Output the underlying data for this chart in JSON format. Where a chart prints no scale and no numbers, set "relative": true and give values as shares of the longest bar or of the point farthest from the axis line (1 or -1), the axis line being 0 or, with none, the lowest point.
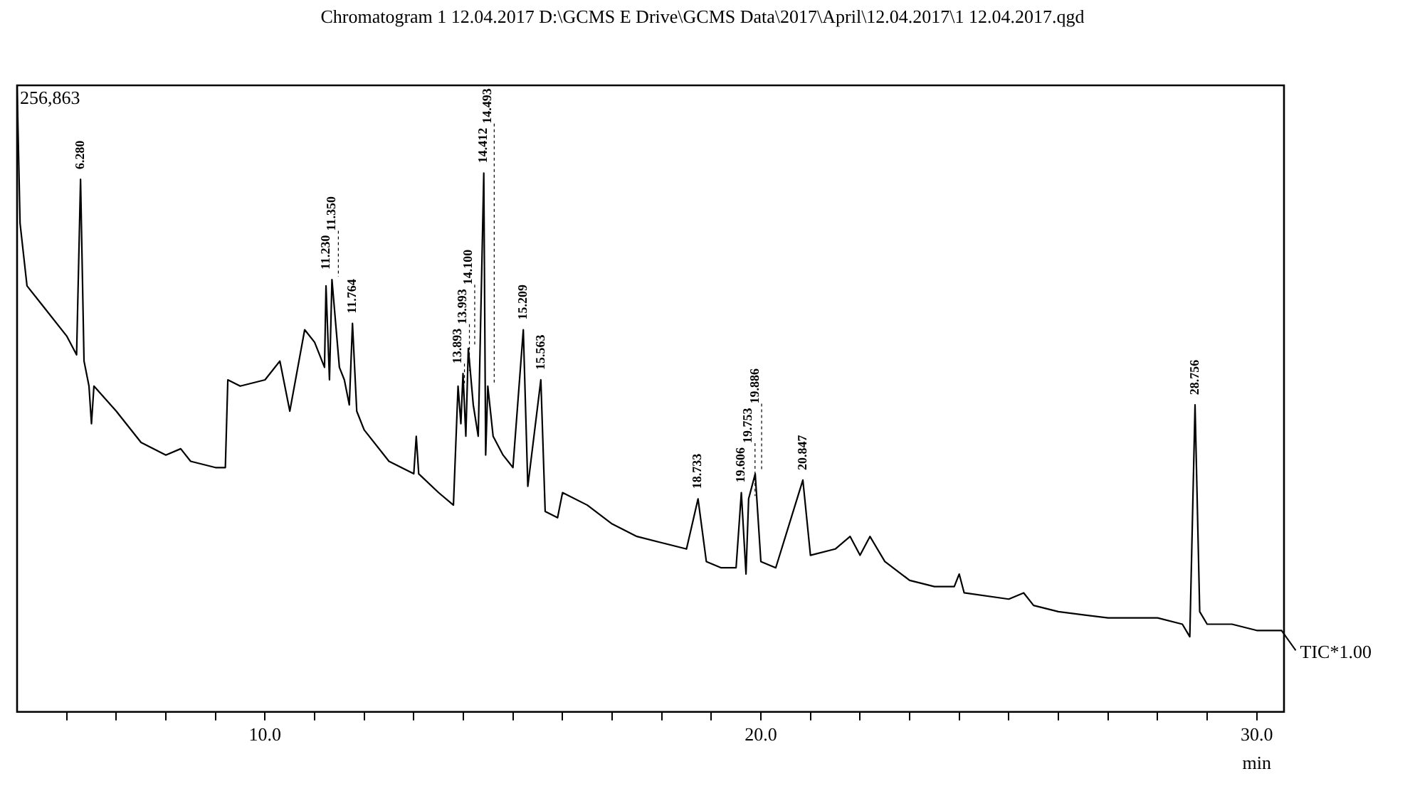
{
  "chart_data": {
    "type": "line",
    "relative": true,
    "title": "Chromatogram 1  12.04.2017 D:\\GCMS E Drive\\GCMS Data\\2017\\April\\12.04.2017\\1  12.04.2017.qgd",
    "xlabel": "min",
    "xlim": [
      5.0,
      30.55
    ],
    "xticks": [
      {
        "value": 6,
        "label": null
      },
      {
        "value": 7,
        "label": null
      },
      {
        "value": 8,
        "label": null
      },
      {
        "value": 9,
        "label": null
      },
      {
        "value": 10,
        "label": "10.0"
      },
      {
        "value": 11,
        "label": null
      },
      {
        "value": 12,
        "label": null
      },
      {
        "value": 13,
        "label": null
      },
      {
        "value": 14,
        "label": null
      },
      {
        "value": 15,
        "label": null
      },
      {
        "value": 16,
        "label": null
      },
      {
        "value": 17,
        "label": null
      },
      {
        "value": 18,
        "label": null
      },
      {
        "value": 19,
        "label": null
      },
      {
        "value": 20,
        "label": "20.0"
      },
      {
        "value": 21,
        "label": null
      },
      {
        "value": 22,
        "label": null
      },
      {
        "value": 23,
        "label": null
      },
      {
        "value": 24,
        "label": null
      },
      {
        "value": 25,
        "label": null
      },
      {
        "value": 26,
        "label": null
      },
      {
        "value": 27,
        "label": null
      },
      {
        "value": 28,
        "label": null
      },
      {
        "value": 29,
        "label": null
      },
      {
        "value": 30,
        "label": "30.0"
      }
    ],
    "tick_labels": "x",
    "grid": false,
    "legend": "right",
    "marker": "none",
    "line_style": "solid",
    "series": [
      {
        "name": "TIC*1.00",
        "color": "#000000",
        "x": [
          5.0,
          5.06,
          5.2,
          5.5,
          6.0,
          6.2,
          6.28,
          6.35,
          6.45,
          6.5,
          6.55,
          7.0,
          7.5,
          8.0,
          8.3,
          8.5,
          9.0,
          9.2,
          9.25,
          9.5,
          10.0,
          10.3,
          10.5,
          10.8,
          11.0,
          11.2,
          11.23,
          11.3,
          11.35,
          11.5,
          11.6,
          11.7,
          11.764,
          11.85,
          12.0,
          12.5,
          13.0,
          13.05,
          13.1,
          13.5,
          13.8,
          13.893,
          13.95,
          13.993,
          14.05,
          14.1,
          14.2,
          14.3,
          14.412,
          14.45,
          14.493,
          14.6,
          14.8,
          15.0,
          15.209,
          15.3,
          15.563,
          15.65,
          15.9,
          16.0,
          16.5,
          17.0,
          17.5,
          18.0,
          18.5,
          18.733,
          18.9,
          19.2,
          19.5,
          19.606,
          19.7,
          19.753,
          19.886,
          20.0,
          20.3,
          20.847,
          21.0,
          21.5,
          21.8,
          22.0,
          22.2,
          22.5,
          23.0,
          23.5,
          23.9,
          24.0,
          24.1,
          25.0,
          25.3,
          25.5,
          26.0,
          27.0,
          28.0,
          28.5,
          28.65,
          28.756,
          28.85,
          29.0,
          29.5,
          30.0,
          30.5
        ],
        "values": [
          1.0,
          0.78,
          0.68,
          0.65,
          0.6,
          0.57,
          0.85,
          0.56,
          0.52,
          0.46,
          0.52,
          0.48,
          0.43,
          0.41,
          0.42,
          0.4,
          0.39,
          0.39,
          0.53,
          0.52,
          0.53,
          0.56,
          0.48,
          0.61,
          0.59,
          0.55,
          0.68,
          0.53,
          0.69,
          0.55,
          0.53,
          0.49,
          0.62,
          0.48,
          0.45,
          0.4,
          0.38,
          0.44,
          0.38,
          0.35,
          0.33,
          0.52,
          0.46,
          0.54,
          0.44,
          0.58,
          0.49,
          0.44,
          0.86,
          0.41,
          0.52,
          0.44,
          0.41,
          0.39,
          0.61,
          0.36,
          0.53,
          0.32,
          0.31,
          0.35,
          0.33,
          0.3,
          0.28,
          0.27,
          0.26,
          0.34,
          0.24,
          0.23,
          0.23,
          0.35,
          0.22,
          0.34,
          0.38,
          0.24,
          0.23,
          0.37,
          0.25,
          0.26,
          0.28,
          0.25,
          0.28,
          0.24,
          0.21,
          0.2,
          0.2,
          0.22,
          0.19,
          0.18,
          0.19,
          0.17,
          0.16,
          0.15,
          0.15,
          0.14,
          0.12,
          0.49,
          0.16,
          0.14,
          0.14,
          0.13,
          0.13
        ]
      }
    ],
    "annotations": [
      "256,863",
      {
        "text": "6.280",
        "x": 6.28,
        "y": 0.85
      },
      {
        "text": "11.230",
        "x": 11.23,
        "y": 0.68
      },
      {
        "text": "11.350",
        "x": 11.35,
        "y": 0.69
      },
      {
        "text": "11.764",
        "x": 11.764,
        "y": 0.62
      },
      {
        "text": "13.893",
        "x": 13.893,
        "y": 0.52
      },
      {
        "text": "13.993",
        "x": 13.993,
        "y": 0.54
      },
      {
        "text": "14.100",
        "x": 14.1,
        "y": 0.58
      },
      {
        "text": "14.412",
        "x": 14.412,
        "y": 0.86
      },
      {
        "text": "14.493",
        "x": 14.493,
        "y": 0.52
      },
      {
        "text": "15.209",
        "x": 15.209,
        "y": 0.61
      },
      {
        "text": "15.563",
        "x": 15.563,
        "y": 0.53
      },
      {
        "text": "18.733",
        "x": 18.733,
        "y": 0.34
      },
      {
        "text": "19.606",
        "x": 19.606,
        "y": 0.35
      },
      {
        "text": "19.753",
        "x": 19.753,
        "y": 0.34
      },
      {
        "text": "19.886",
        "x": 19.886,
        "y": 0.38
      },
      {
        "text": "20.847",
        "x": 20.847,
        "y": 0.37
      },
      {
        "text": "28.756",
        "x": 28.756,
        "y": 0.49
      }
    ]
  }
}
